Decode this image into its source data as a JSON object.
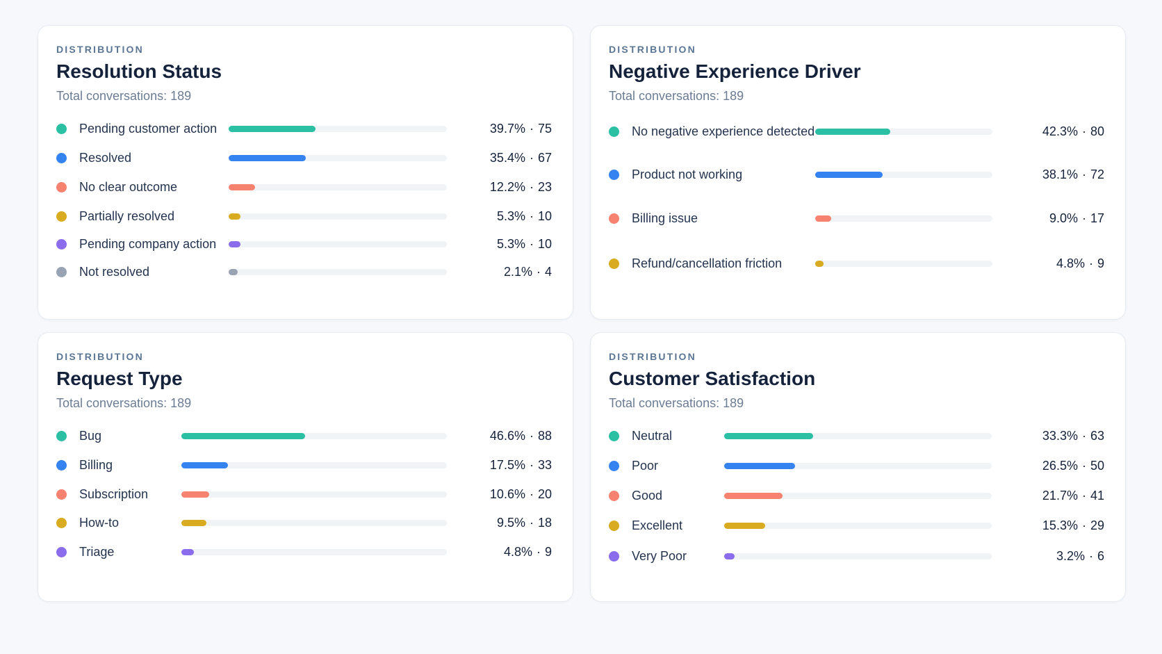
{
  "colors": {
    "teal": "#2bbfa4",
    "blue": "#3583f0",
    "coral": "#f7826f",
    "gold": "#d8ab21",
    "purple": "#8b6cec",
    "gray": "#98a3b3"
  },
  "cards": [
    {
      "eyebrow": "DISTRIBUTION",
      "title": "Resolution Status",
      "subtitle": "Total conversations: 189",
      "rows": [
        {
          "label": "Pending customer action",
          "pct": "39.7%",
          "count": "75",
          "fraction": 0.397,
          "color": "#2bbfa4"
        },
        {
          "label": "Resolved",
          "pct": "35.4%",
          "count": "67",
          "fraction": 0.354,
          "color": "#3583f0"
        },
        {
          "label": "No clear outcome",
          "pct": "12.2%",
          "count": "23",
          "fraction": 0.122,
          "color": "#f7826f"
        },
        {
          "label": "Partially resolved",
          "pct": "5.3%",
          "count": "10",
          "fraction": 0.053,
          "color": "#d8ab21"
        },
        {
          "label": "Pending company action",
          "pct": "5.3%",
          "count": "10",
          "fraction": 0.053,
          "color": "#8b6cec"
        },
        {
          "label": "Not resolved",
          "pct": "2.1%",
          "count": "4",
          "fraction": 0.021,
          "color": "#98a3b3"
        }
      ]
    },
    {
      "eyebrow": "DISTRIBUTION",
      "title": "Negative Experience Driver",
      "subtitle": "Total conversations: 189",
      "rows": [
        {
          "label": "No negative experience detected",
          "pct": "42.3%",
          "count": "80",
          "fraction": 0.423,
          "color": "#2bbfa4"
        },
        {
          "label": "Product not working",
          "pct": "38.1%",
          "count": "72",
          "fraction": 0.381,
          "color": "#3583f0"
        },
        {
          "label": "Billing issue",
          "pct": "9.0%",
          "count": "17",
          "fraction": 0.09,
          "color": "#f7826f"
        },
        {
          "label": "Refund/cancellation friction",
          "pct": "4.8%",
          "count": "9",
          "fraction": 0.048,
          "color": "#d8ab21"
        }
      ]
    },
    {
      "eyebrow": "DISTRIBUTION",
      "title": "Request Type",
      "subtitle": "Total conversations: 189",
      "rows": [
        {
          "label": "Bug",
          "pct": "46.6%",
          "count": "88",
          "fraction": 0.466,
          "color": "#2bbfa4"
        },
        {
          "label": "Billing",
          "pct": "17.5%",
          "count": "33",
          "fraction": 0.175,
          "color": "#3583f0"
        },
        {
          "label": "Subscription",
          "pct": "10.6%",
          "count": "20",
          "fraction": 0.106,
          "color": "#f7826f"
        },
        {
          "label": "How-to",
          "pct": "9.5%",
          "count": "18",
          "fraction": 0.095,
          "color": "#d8ab21"
        },
        {
          "label": "Triage",
          "pct": "4.8%",
          "count": "9",
          "fraction": 0.048,
          "color": "#8b6cec"
        }
      ]
    },
    {
      "eyebrow": "DISTRIBUTION",
      "title": "Customer Satisfaction",
      "subtitle": "Total conversations: 189",
      "rows": [
        {
          "label": "Neutral",
          "pct": "33.3%",
          "count": "63",
          "fraction": 0.333,
          "color": "#2bbfa4"
        },
        {
          "label": "Poor",
          "pct": "26.5%",
          "count": "50",
          "fraction": 0.265,
          "color": "#3583f0"
        },
        {
          "label": "Good",
          "pct": "21.7%",
          "count": "41",
          "fraction": 0.217,
          "color": "#f7826f"
        },
        {
          "label": "Excellent",
          "pct": "15.3%",
          "count": "29",
          "fraction": 0.153,
          "color": "#d8ab21"
        },
        {
          "label": "Very Poor",
          "pct": "3.2%",
          "count": "6",
          "fraction": 0.032,
          "color": "#8b6cec"
        }
      ]
    }
  ]
}
